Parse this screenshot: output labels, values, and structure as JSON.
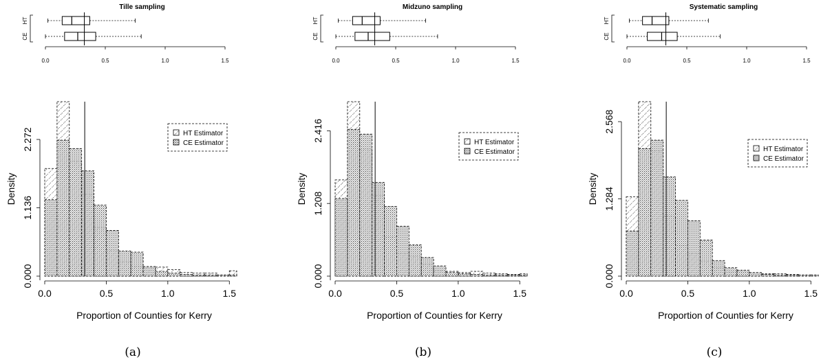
{
  "chart_data": [
    {
      "panel_label": "(a)",
      "title": "Tille sampling",
      "boxplot": {
        "type": "boxplot",
        "title": "Tille sampling",
        "xlim": [
          0,
          1.5
        ],
        "xticks": [
          "0.0",
          "0.5",
          "1.0",
          "1.5"
        ],
        "reference_line": 0.325,
        "series": [
          {
            "name": "HT",
            "whisker_low": 0.02,
            "q1": 0.14,
            "median": 0.22,
            "q3": 0.37,
            "whisker_high": 0.75
          },
          {
            "name": "CE",
            "whisker_low": 0.0,
            "q1": 0.16,
            "median": 0.27,
            "q3": 0.42,
            "whisker_high": 0.8
          }
        ]
      },
      "histogram": {
        "type": "bar",
        "xlabel": "Proportion of Counties for Kerry",
        "ylabel": "Density",
        "xlim": [
          0,
          1.56
        ],
        "ylim": [
          0,
          2.9
        ],
        "xticks": [
          "0.0",
          "0.5",
          "1.0",
          "1.5"
        ],
        "yticks": [
          "0.000",
          "1.136",
          "2.272"
        ],
        "ytick_values": [
          0,
          1.136,
          2.272
        ],
        "reference_line": 0.325,
        "bin_edges": [
          0,
          0.1,
          0.2,
          0.3,
          0.4,
          0.5,
          0.6,
          0.7,
          0.8,
          0.9,
          1.0,
          1.1,
          1.2,
          1.3,
          1.4,
          1.5,
          1.6
        ],
        "legend": {
          "position": "right",
          "entries": [
            "HT Estimator",
            "CE Estimator"
          ]
        },
        "series": [
          {
            "name": "HT Estimator",
            "values": [
              1.79,
              2.9,
              1.91,
              1.36,
              0.81,
              0.43,
              0.24,
              0.16,
              0.15,
              0.15,
              0.11,
              0.06,
              0.05,
              0.05,
              0.02,
              0.09
            ]
          },
          {
            "name": "CE Estimator",
            "values": [
              1.27,
              2.26,
              2.12,
              1.75,
              1.18,
              0.76,
              0.42,
              0.4,
              0.16,
              0.08,
              0.05,
              0.03,
              0.02,
              0.02,
              0.02,
              0.02
            ]
          }
        ]
      }
    },
    {
      "panel_label": "(b)",
      "title": "Midzuno sampling",
      "boxplot": {
        "type": "boxplot",
        "title": "Midzuno sampling",
        "xlim": [
          0,
          1.5
        ],
        "xticks": [
          "0.0",
          "0.5",
          "1.0",
          "1.5"
        ],
        "reference_line": 0.325,
        "series": [
          {
            "name": "HT",
            "whisker_low": 0.02,
            "q1": 0.14,
            "median": 0.22,
            "q3": 0.37,
            "whisker_high": 0.75
          },
          {
            "name": "CE",
            "whisker_low": 0.0,
            "q1": 0.16,
            "median": 0.27,
            "q3": 0.45,
            "whisker_high": 0.85
          }
        ]
      },
      "histogram": {
        "type": "bar",
        "xlabel": "Proportion of Counties for Kerry",
        "ylabel": "Density",
        "xlim": [
          0,
          1.56
        ],
        "ylim": [
          0,
          2.9
        ],
        "xticks": [
          "0.0",
          "0.5",
          "1.0",
          "1.5"
        ],
        "yticks": [
          "0.000",
          "1.208",
          "2.416"
        ],
        "ytick_values": [
          0,
          1.208,
          2.416
        ],
        "reference_line": 0.325,
        "bin_edges": [
          0,
          0.1,
          0.2,
          0.3,
          0.4,
          0.5,
          0.6,
          0.7,
          0.8,
          0.9,
          1.0,
          1.1,
          1.2,
          1.3,
          1.4,
          1.5,
          1.6
        ],
        "legend": {
          "position": "right",
          "entries": [
            "HT Estimator",
            "CE Estimator"
          ]
        },
        "series": [
          {
            "name": "HT Estimator",
            "values": [
              1.6,
              2.9,
              2.11,
              1.34,
              0.65,
              0.38,
              0.33,
              0.2,
              0.09,
              0.08,
              0.06,
              0.08,
              0.05,
              0.04,
              0.03,
              0.04
            ]
          },
          {
            "name": "CE Estimator",
            "values": [
              1.29,
              2.44,
              2.36,
              1.56,
              1.16,
              0.83,
              0.52,
              0.31,
              0.17,
              0.06,
              0.04,
              0.03,
              0.02,
              0.02,
              0.02,
              0.02
            ]
          }
        ]
      }
    },
    {
      "panel_label": "(c)",
      "title": "Systematic sampling",
      "boxplot": {
        "type": "boxplot",
        "title": "Systematic sampling",
        "xlim": [
          0,
          1.5
        ],
        "xticks": [
          "0.0",
          "0.5",
          "1.0",
          "1.5"
        ],
        "reference_line": 0.325,
        "series": [
          {
            "name": "HT",
            "whisker_low": 0.02,
            "q1": 0.13,
            "median": 0.21,
            "q3": 0.35,
            "whisker_high": 0.68
          },
          {
            "name": "CE",
            "whisker_low": 0.0,
            "q1": 0.17,
            "median": 0.29,
            "q3": 0.42,
            "whisker_high": 0.78
          }
        ]
      },
      "histogram": {
        "type": "bar",
        "xlabel": "Proportion of Counties for Kerry",
        "ylabel": "Density",
        "xlim": [
          0,
          1.56
        ],
        "ylim": [
          0,
          2.9
        ],
        "xticks": [
          "0.0",
          "0.5",
          "1.0",
          "1.5"
        ],
        "yticks": [
          "0.000",
          "1.284",
          "2.568"
        ],
        "ytick_values": [
          0,
          1.284,
          2.568
        ],
        "reference_line": 0.325,
        "bin_edges": [
          0,
          0.1,
          0.2,
          0.3,
          0.4,
          0.5,
          0.6,
          0.7,
          0.8,
          0.9,
          1.0,
          1.1,
          1.2,
          1.3,
          1.4,
          1.5,
          1.6
        ],
        "legend": {
          "position": "right",
          "entries": [
            "HT Estimator",
            "CE Estimator"
          ]
        },
        "series": [
          {
            "name": "HT Estimator",
            "values": [
              1.32,
              2.9,
              2.08,
              1.0,
              0.51,
              0.38,
              0.25,
              0.14,
              0.07,
              0.07,
              0.05,
              0.04,
              0.04,
              0.03,
              0.02,
              0.02
            ]
          },
          {
            "name": "CE Estimator",
            "values": [
              0.75,
              2.12,
              2.26,
              1.65,
              1.26,
              0.92,
              0.6,
              0.26,
              0.14,
              0.1,
              0.06,
              0.03,
              0.02,
              0.02,
              0.02,
              0.02
            ]
          }
        ]
      }
    }
  ]
}
